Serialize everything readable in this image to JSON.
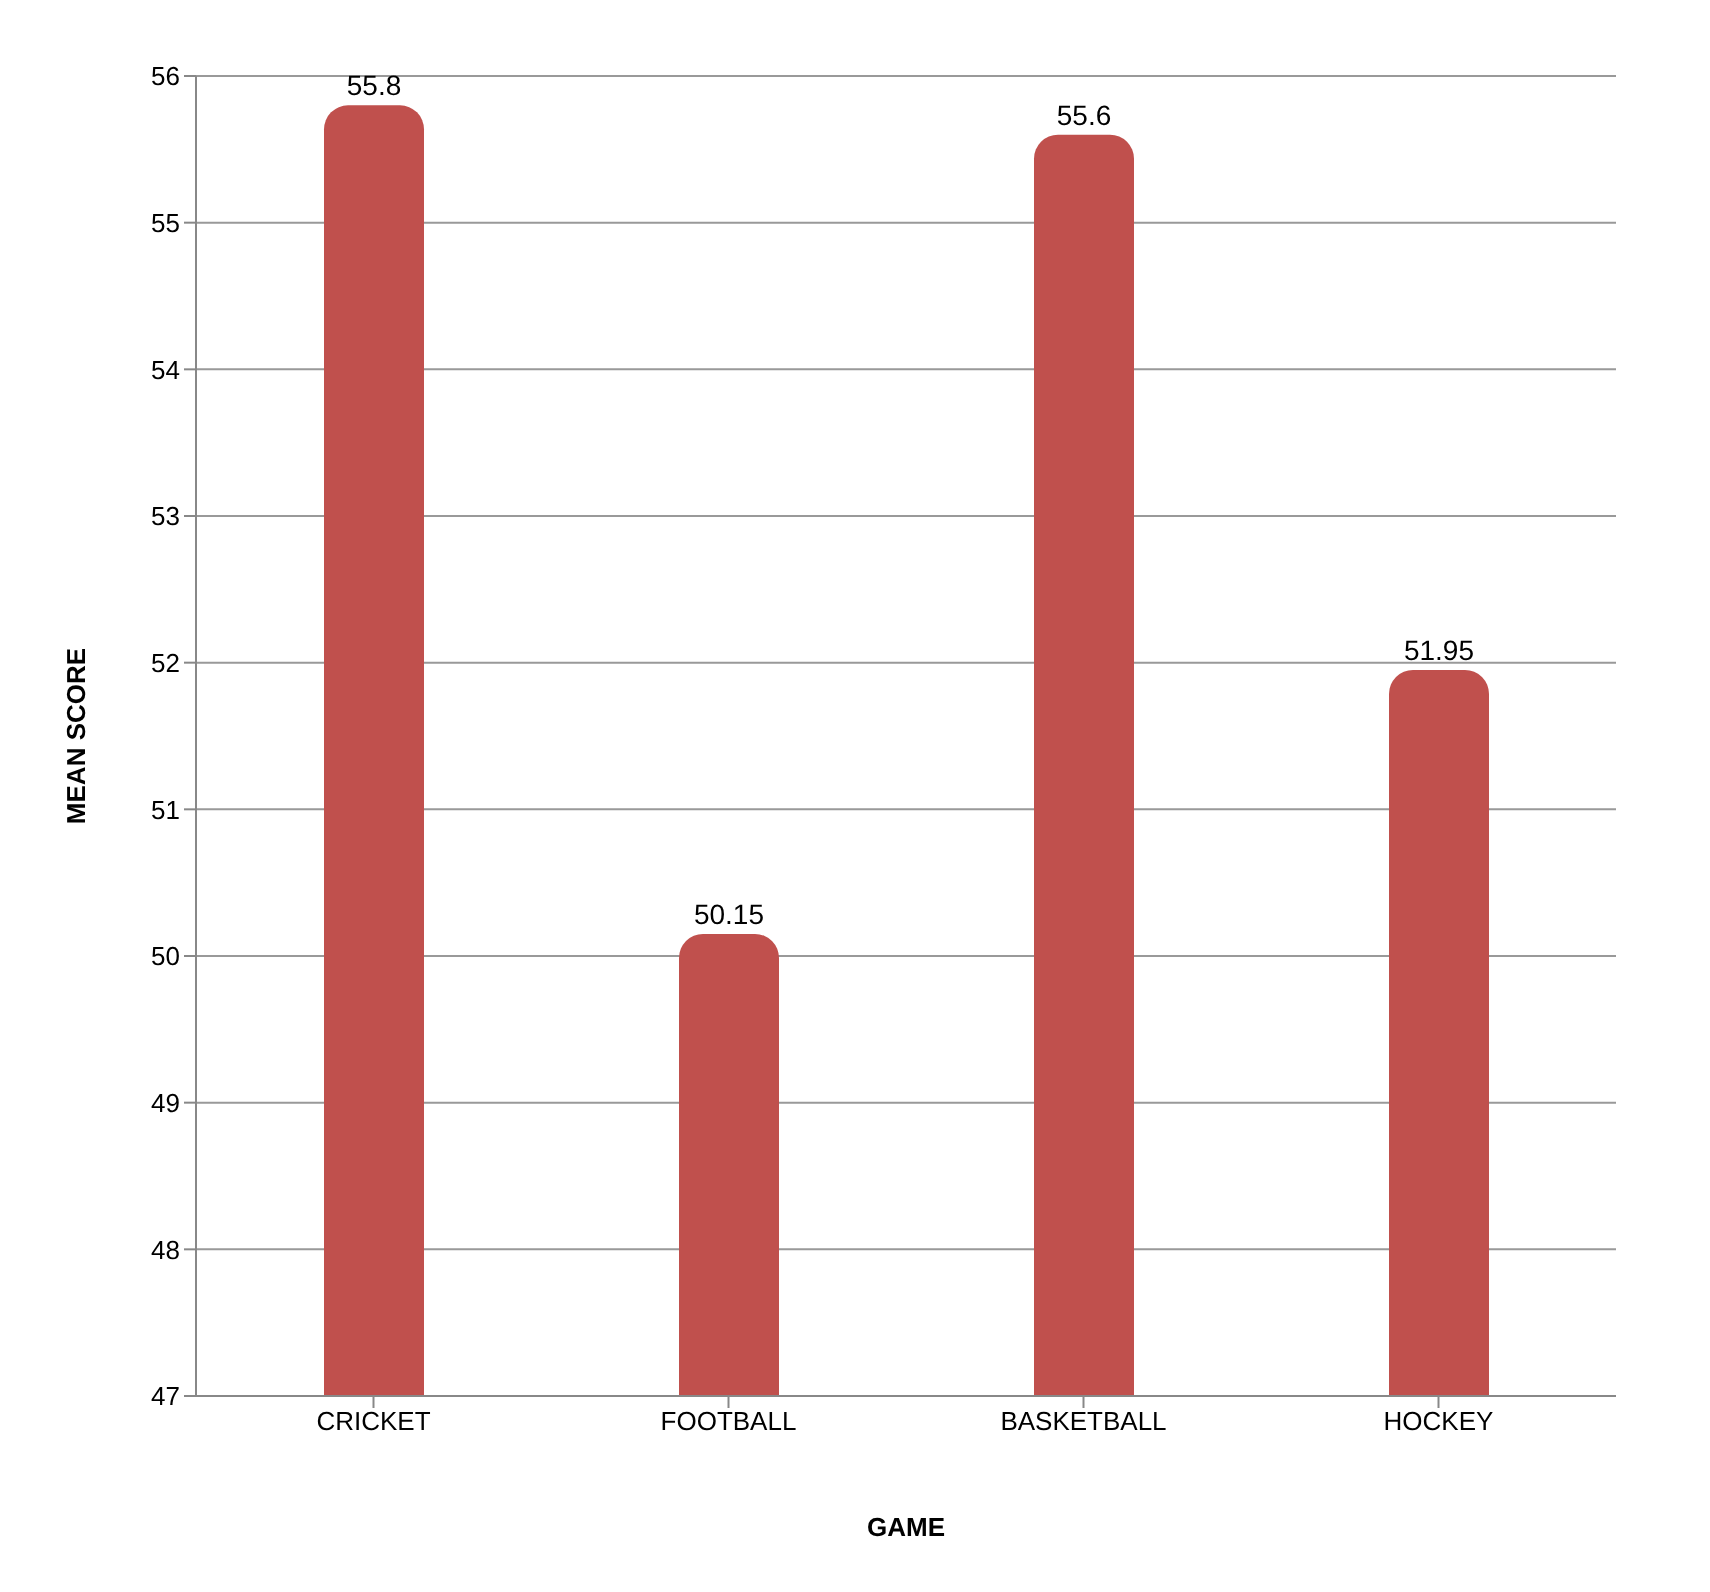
{
  "chart_data": {
    "type": "bar",
    "xlabel": "GAME",
    "ylabel": "MEAN SCORE",
    "categories": [
      "CRICKET",
      "FOOTBALL",
      "BASKETBALL",
      "HOCKEY"
    ],
    "values": [
      55.8,
      50.15,
      55.6,
      51.95
    ],
    "color": "#c0504d",
    "ylim": [
      47,
      56
    ],
    "yticks": [
      47,
      48,
      49,
      50,
      51,
      52,
      53,
      54,
      55,
      56
    ],
    "grid": "y",
    "data_labels": true
  }
}
